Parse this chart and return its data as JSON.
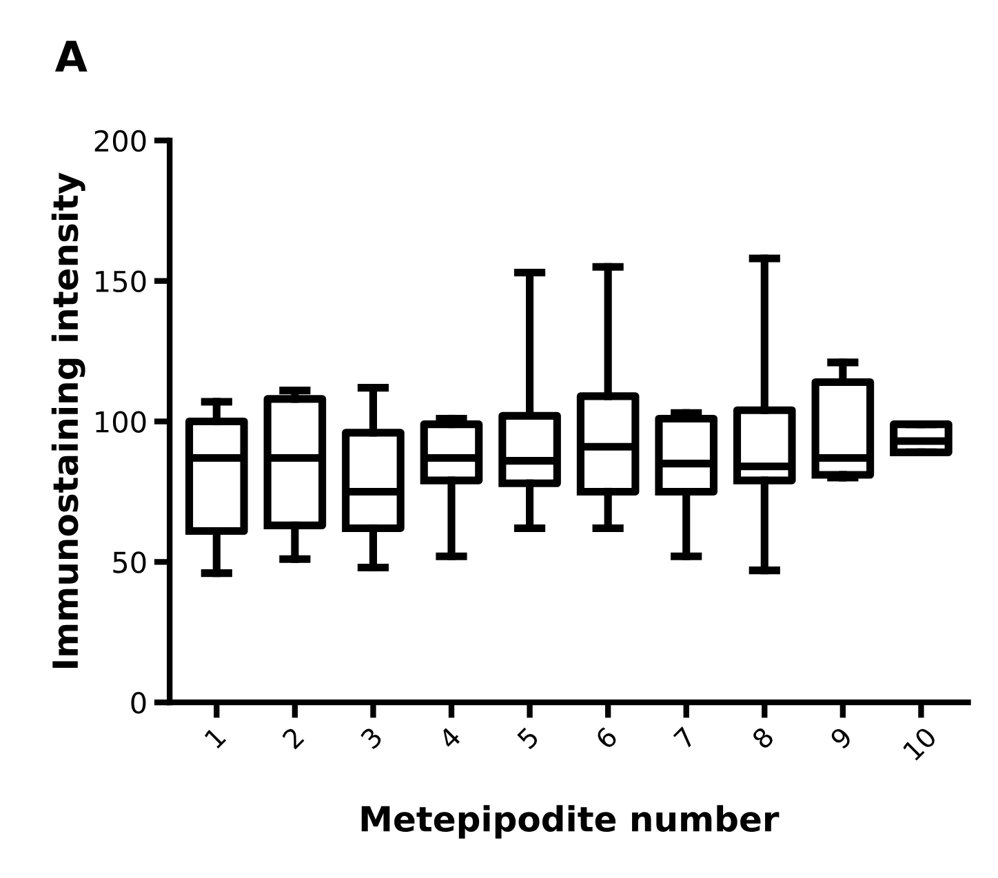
{
  "chart_data": {
    "type": "box",
    "title": "A",
    "xlabel": "Metepipodite number",
    "ylabel": "Immunostaining intensity",
    "categories": [
      "1",
      "2",
      "3",
      "4",
      "5",
      "6",
      "7",
      "8",
      "9",
      "10"
    ],
    "ylim": [
      0,
      200
    ],
    "yticks": [
      0,
      50,
      100,
      150,
      200
    ],
    "grid": false,
    "legend": false,
    "color": "#000000",
    "boxes": [
      {
        "low": 46,
        "q1": 61,
        "median": 87,
        "q3": 100,
        "high": 107
      },
      {
        "low": 51,
        "q1": 63,
        "median": 87,
        "q3": 108,
        "high": 111
      },
      {
        "low": 48,
        "q1": 62,
        "median": 75,
        "q3": 96,
        "high": 112
      },
      {
        "low": 52,
        "q1": 79,
        "median": 87,
        "q3": 99,
        "high": 101
      },
      {
        "low": 62,
        "q1": 78,
        "median": 86,
        "q3": 102,
        "high": 153
      },
      {
        "low": 62,
        "q1": 75,
        "median": 91,
        "q3": 109,
        "high": 155
      },
      {
        "low": 52,
        "q1": 75,
        "median": 85,
        "q3": 101,
        "high": 103
      },
      {
        "low": 47,
        "q1": 79,
        "median": 84,
        "q3": 104,
        "high": 158
      },
      {
        "low": 80,
        "q1": 81,
        "median": 87,
        "q3": 114,
        "high": 121
      },
      {
        "low": 89,
        "q1": 89,
        "median": 93,
        "q3": 99,
        "high": 99
      }
    ]
  }
}
